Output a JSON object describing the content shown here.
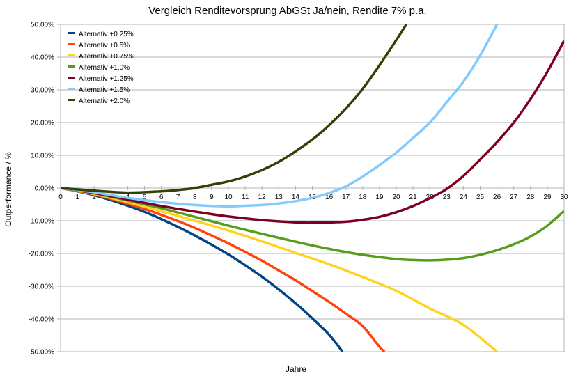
{
  "chart_data": {
    "type": "line",
    "title": "Vergleich Renditevorsprung AbGSt Ja/nein, Rendite 7% p.a.",
    "xlabel": "Jahre",
    "ylabel": "Outperformance / %",
    "xlim": [
      0,
      30
    ],
    "ylim": [
      -0.5,
      0.5
    ],
    "grid": true,
    "legend_position": "top-left",
    "x_ticks": [
      "0",
      "1",
      "2",
      "3",
      "4",
      "5",
      "6",
      "7",
      "8",
      "9",
      "10",
      "11",
      "12",
      "13",
      "14",
      "15",
      "16",
      "17",
      "18",
      "19",
      "20",
      "21",
      "22",
      "23",
      "24",
      "25",
      "26",
      "27",
      "28",
      "29",
      "30"
    ],
    "y_ticks": [
      "50.00%",
      "40.00%",
      "30.00%",
      "20.00%",
      "10.00%",
      "0.00%",
      "-10.00%",
      "-20.00%",
      "-30.00%",
      "-40.00%",
      "-50.00%"
    ],
    "y_tick_values": [
      0.5,
      0.4,
      0.3,
      0.2,
      0.1,
      0.0,
      -0.1,
      -0.2,
      -0.3,
      -0.4,
      -0.5
    ],
    "series": [
      {
        "name": "Alternativ +0.25%",
        "color": "#004586",
        "x": [
          0,
          1,
          2,
          3,
          4,
          5,
          6,
          7,
          8,
          9,
          10,
          11,
          12,
          13,
          14,
          15,
          16,
          16.8
        ],
        "values": [
          0,
          -0.01,
          -0.022,
          -0.037,
          -0.054,
          -0.073,
          -0.095,
          -0.119,
          -0.145,
          -0.173,
          -0.203,
          -0.236,
          -0.271,
          -0.31,
          -0.352,
          -0.398,
          -0.448,
          -0.5
        ]
      },
      {
        "name": "Alternativ +0.5%",
        "color": "#ff420e",
        "x": [
          0,
          1,
          2,
          3,
          4,
          5,
          6,
          7,
          8,
          9,
          10,
          11,
          12,
          13,
          14,
          15,
          16,
          17,
          18,
          19,
          19.3
        ],
        "values": [
          0,
          -0.009,
          -0.02,
          -0.033,
          -0.048,
          -0.064,
          -0.082,
          -0.101,
          -0.122,
          -0.145,
          -0.169,
          -0.195,
          -0.222,
          -0.252,
          -0.282,
          -0.315,
          -0.348,
          -0.384,
          -0.422,
          -0.485,
          -0.5
        ]
      },
      {
        "name": "Alternativ +0.75%",
        "color": "#ffd320",
        "x": [
          0,
          2,
          4,
          6,
          8,
          10,
          12,
          14,
          16,
          18,
          20,
          22,
          24,
          26
        ],
        "values": [
          0,
          -0.018,
          -0.043,
          -0.071,
          -0.1,
          -0.13,
          -0.163,
          -0.198,
          -0.233,
          -0.272,
          -0.314,
          -0.368,
          -0.418,
          -0.5
        ]
      },
      {
        "name": "Alternativ +1.0%",
        "color": "#579d1c",
        "x": [
          0,
          2,
          4,
          6,
          8,
          10,
          12,
          14,
          16,
          18,
          20,
          21,
          22,
          23,
          24,
          25,
          26,
          27,
          28,
          29,
          30
        ],
        "values": [
          0,
          -0.016,
          -0.038,
          -0.062,
          -0.088,
          -0.115,
          -0.14,
          -0.164,
          -0.186,
          -0.204,
          -0.217,
          -0.22,
          -0.221,
          -0.219,
          -0.214,
          -0.204,
          -0.19,
          -0.172,
          -0.148,
          -0.115,
          -0.07
        ]
      },
      {
        "name": "Alternativ +1.25%",
        "color": "#7e0021",
        "x": [
          0,
          2,
          4,
          6,
          8,
          10,
          12,
          14,
          15,
          16,
          17,
          18,
          19,
          20,
          21,
          22,
          23,
          24,
          25,
          26,
          27,
          28,
          29,
          30
        ],
        "values": [
          0,
          -0.015,
          -0.035,
          -0.055,
          -0.072,
          -0.087,
          -0.098,
          -0.105,
          -0.106,
          -0.105,
          -0.103,
          -0.097,
          -0.088,
          -0.074,
          -0.055,
          -0.031,
          -0.003,
          0.037,
          0.087,
          0.14,
          0.2,
          0.272,
          0.355,
          0.45
        ]
      },
      {
        "name": "Alternativ +1.5%",
        "color": "#83caff",
        "x": [
          0,
          2,
          4,
          6,
          8,
          10,
          11,
          12,
          13,
          14,
          15,
          16,
          17,
          18,
          19,
          20,
          21,
          22,
          23,
          24,
          25,
          26
        ],
        "values": [
          0,
          -0.013,
          -0.03,
          -0.043,
          -0.052,
          -0.056,
          -0.054,
          -0.052,
          -0.047,
          -0.04,
          -0.03,
          -0.015,
          0.005,
          0.035,
          0.07,
          0.108,
          0.153,
          0.2,
          0.262,
          0.325,
          0.405,
          0.5
        ]
      },
      {
        "name": "Alternativ +2.0%",
        "color": "#314004",
        "x": [
          0,
          2,
          4,
          6,
          7,
          8,
          9,
          10,
          11,
          12,
          13,
          14,
          15,
          16,
          17,
          18,
          19,
          20,
          20.6
        ],
        "values": [
          0,
          -0.008,
          -0.014,
          -0.01,
          -0.006,
          0.0,
          0.01,
          0.02,
          0.035,
          0.055,
          0.08,
          0.112,
          0.148,
          0.192,
          0.243,
          0.303,
          0.375,
          0.452,
          0.5
        ]
      }
    ]
  }
}
